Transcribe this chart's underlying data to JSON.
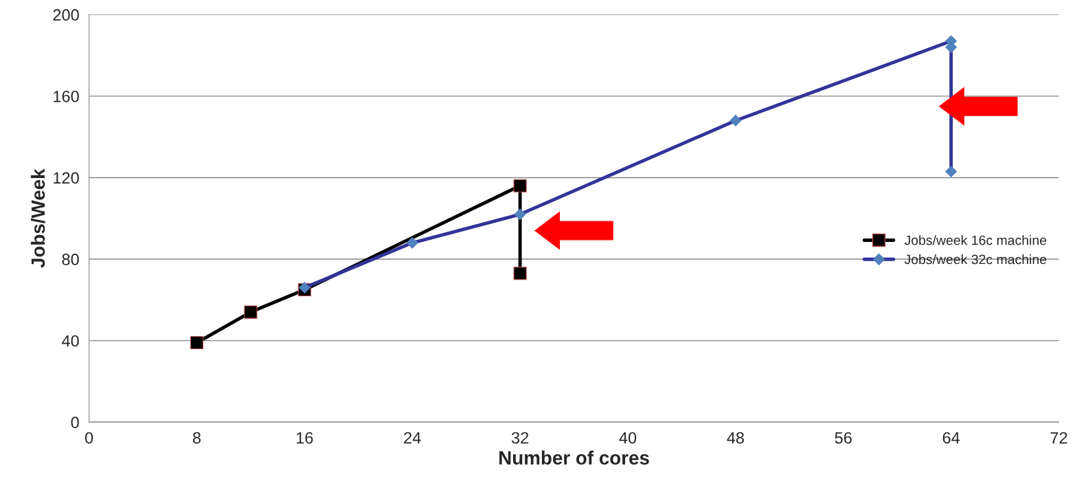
{
  "chart_data": {
    "type": "line",
    "xlabel": "Number of cores",
    "ylabel": "Jobs/Week",
    "xlim": [
      0,
      72
    ],
    "xticks": [
      0,
      8,
      16,
      24,
      32,
      40,
      48,
      56,
      64,
      72
    ],
    "ylim": [
      0,
      200
    ],
    "yticks": [
      0,
      40,
      80,
      120,
      160,
      200
    ],
    "grid": "y",
    "legend": "right",
    "series": [
      {
        "name": "Jobs/week 16c machine",
        "color": "#000000",
        "marker": "square",
        "x": [
          8,
          12,
          16,
          32,
          32
        ],
        "values": [
          39,
          54,
          65,
          116,
          73
        ]
      },
      {
        "name": "Jobs/week 32c machine",
        "color": "#333399",
        "marker": "diamond",
        "x": [
          16,
          24,
          32,
          48,
          64,
          64,
          64
        ],
        "values": [
          66,
          88,
          102,
          148,
          187,
          184,
          123
        ]
      }
    ]
  }
}
